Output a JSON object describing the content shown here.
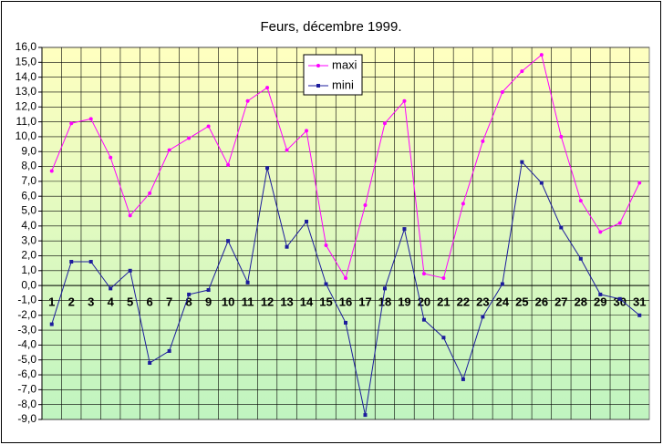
{
  "chart_data": {
    "type": "line",
    "title": "Feurs, décembre 1999.",
    "categories": [
      "1",
      "2",
      "3",
      "4",
      "5",
      "6",
      "7",
      "8",
      "9",
      "10",
      "11",
      "12",
      "13",
      "14",
      "15",
      "16",
      "17",
      "18",
      "19",
      "20",
      "21",
      "22",
      "23",
      "24",
      "25",
      "26",
      "27",
      "28",
      "29",
      "30",
      "31"
    ],
    "series": [
      {
        "name": "maxi",
        "color": "#ff00ff",
        "values": [
          7.7,
          10.9,
          11.2,
          8.6,
          4.7,
          6.2,
          9.1,
          9.9,
          10.7,
          8.1,
          12.4,
          13.3,
          9.1,
          10.4,
          2.7,
          0.5,
          5.4,
          10.9,
          12.4,
          0.8,
          0.5,
          5.5,
          9.7,
          13.0,
          14.4,
          15.5,
          10.0,
          5.7,
          3.6,
          4.2,
          6.9
        ]
      },
      {
        "name": "mini",
        "color": "#1c1c9c",
        "values": [
          -2.6,
          1.6,
          1.6,
          -0.2,
          1.0,
          -5.2,
          -4.4,
          -0.6,
          -0.3,
          3.0,
          0.2,
          7.9,
          2.6,
          4.3,
          0.1,
          -2.5,
          -8.7,
          -0.2,
          3.8,
          -2.3,
          -3.5,
          -6.3,
          -2.1,
          0.1,
          8.3,
          6.9,
          3.9,
          1.8,
          -0.6,
          -0.9,
          -2.0
        ]
      }
    ],
    "ylim": [
      -9,
      16
    ],
    "yticks": [
      {
        "value": 16,
        "label": "16,0"
      },
      {
        "value": 15,
        "label": "15,0"
      },
      {
        "value": 14,
        "label": "14,0"
      },
      {
        "value": 13,
        "label": "13,0"
      },
      {
        "value": 12,
        "label": "12,0"
      },
      {
        "value": 11,
        "label": "11,0"
      },
      {
        "value": 10,
        "label": "10,0"
      },
      {
        "value": 9,
        "label": "9,0"
      },
      {
        "value": 8,
        "label": "8,0"
      },
      {
        "value": 7,
        "label": "7,0"
      },
      {
        "value": 6,
        "label": "6,0"
      },
      {
        "value": 5,
        "label": "5,0"
      },
      {
        "value": 4,
        "label": "4,0"
      },
      {
        "value": 3,
        "label": "3,0"
      },
      {
        "value": 2,
        "label": "2,0"
      },
      {
        "value": 1,
        "label": "1,0"
      },
      {
        "value": 0,
        "label": "0,0"
      },
      {
        "value": -1,
        "label": "-1,0"
      },
      {
        "value": -2,
        "label": "-2,0"
      },
      {
        "value": -3,
        "label": "-3,0"
      },
      {
        "value": -4,
        "label": "-4,0"
      },
      {
        "value": -5,
        "label": "-5,0"
      },
      {
        "value": -6,
        "label": "-6,0"
      },
      {
        "value": -7,
        "label": "-7,0"
      },
      {
        "value": -8,
        "label": "-8,0"
      },
      {
        "value": -9,
        "label": "-9,0"
      }
    ],
    "grid": true,
    "legend": "top"
  }
}
